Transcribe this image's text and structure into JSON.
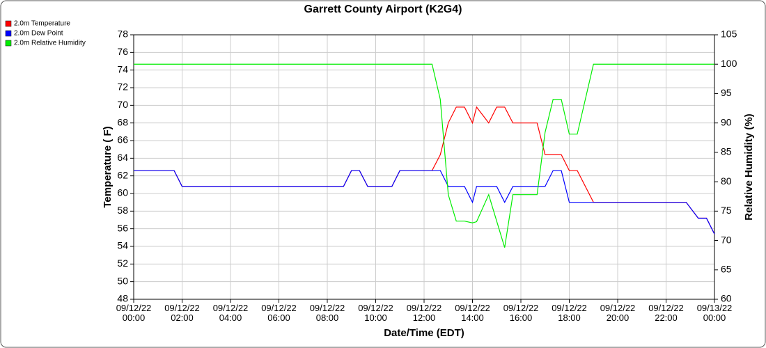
{
  "chart_data": {
    "type": "line",
    "title": "Garrett County Airport (K2G4)",
    "x_label": "Date/Time (EDT)",
    "y_label": "Temperature ( F)",
    "y2_label": "Relative Humidity (%)",
    "grid": true,
    "legend": "top-left",
    "xlim": [
      0,
      24
    ],
    "xticks": [
      {
        "value": 0,
        "label": "09/12/22\n00:00"
      },
      {
        "value": 2,
        "label": "09/12/22\n02:00"
      },
      {
        "value": 4,
        "label": "09/12/22\n04:00"
      },
      {
        "value": 6,
        "label": "09/12/22\n06:00"
      },
      {
        "value": 8,
        "label": "09/12/22\n08:00"
      },
      {
        "value": 10,
        "label": "09/12/22\n10:00"
      },
      {
        "value": 12,
        "label": "09/12/22\n12:00"
      },
      {
        "value": 14,
        "label": "09/12/22\n14:00"
      },
      {
        "value": 16,
        "label": "09/12/22\n16:00"
      },
      {
        "value": 18,
        "label": "09/12/22\n18:00"
      },
      {
        "value": 20,
        "label": "09/12/22\n20:00"
      },
      {
        "value": 22,
        "label": "09/12/22\n22:00"
      },
      {
        "value": 24,
        "label": "09/13/22\n00:00"
      }
    ],
    "ylim": [
      48,
      78
    ],
    "yticks": [
      48,
      50,
      52,
      54,
      56,
      58,
      60,
      62,
      64,
      66,
      68,
      70,
      72,
      74,
      76,
      78
    ],
    "y2lim": [
      60,
      105
    ],
    "y2ticks": [
      60,
      65,
      70,
      75,
      80,
      85,
      90,
      95,
      100,
      105
    ],
    "series": [
      {
        "name": "2.0m Temperature",
        "color": "#ff0000",
        "x": [
          0,
          1.67,
          2,
          8.67,
          9,
          9.33,
          9.67,
          10.67,
          11,
          12.33,
          12.67,
          13,
          13.33,
          13.67,
          14,
          14.17,
          14.67,
          15,
          15.33,
          15.67,
          16.67,
          17,
          17.67,
          18,
          18.33,
          19,
          22.83,
          23.33,
          23.67,
          24
        ],
        "values": [
          62.6,
          62.6,
          60.8,
          60.8,
          62.6,
          62.6,
          60.8,
          60.8,
          62.6,
          62.6,
          64.4,
          68,
          69.8,
          69.8,
          68,
          69.8,
          68,
          69.8,
          69.8,
          68,
          68,
          64.4,
          64.4,
          62.6,
          62.6,
          59,
          59,
          57.2,
          57.2,
          55.4
        ]
      },
      {
        "name": "2.0m Dew Point",
        "color": "#0000ff",
        "x": [
          0,
          1.67,
          2,
          8.67,
          9,
          9.33,
          9.67,
          10.67,
          11,
          12.33,
          12.67,
          13,
          13.67,
          14,
          14.17,
          15,
          15.33,
          15.67,
          17,
          17.33,
          17.67,
          18,
          19,
          22.83,
          23.33,
          23.67,
          24
        ],
        "values": [
          62.6,
          62.6,
          60.8,
          60.8,
          62.6,
          62.6,
          60.8,
          60.8,
          62.6,
          62.6,
          62.6,
          60.8,
          60.8,
          59,
          60.8,
          60.8,
          59,
          60.8,
          60.8,
          62.6,
          62.6,
          59,
          59,
          59,
          57.2,
          57.2,
          55.4
        ]
      },
      {
        "name": "2.0m Relative Humidity",
        "color": "#00ee00",
        "axis": "y2",
        "x": [
          0,
          12.33,
          12.67,
          13,
          13.33,
          13.67,
          14,
          14.17,
          14.67,
          15.33,
          15.67,
          16.67,
          17,
          17.33,
          17.67,
          18,
          18.33,
          19,
          24
        ],
        "values": [
          100,
          100,
          94,
          77.8,
          73.3,
          73.3,
          73,
          73.2,
          77.8,
          68.8,
          77.8,
          77.8,
          88.4,
          94,
          94,
          88.1,
          88.1,
          100,
          100
        ]
      }
    ]
  }
}
